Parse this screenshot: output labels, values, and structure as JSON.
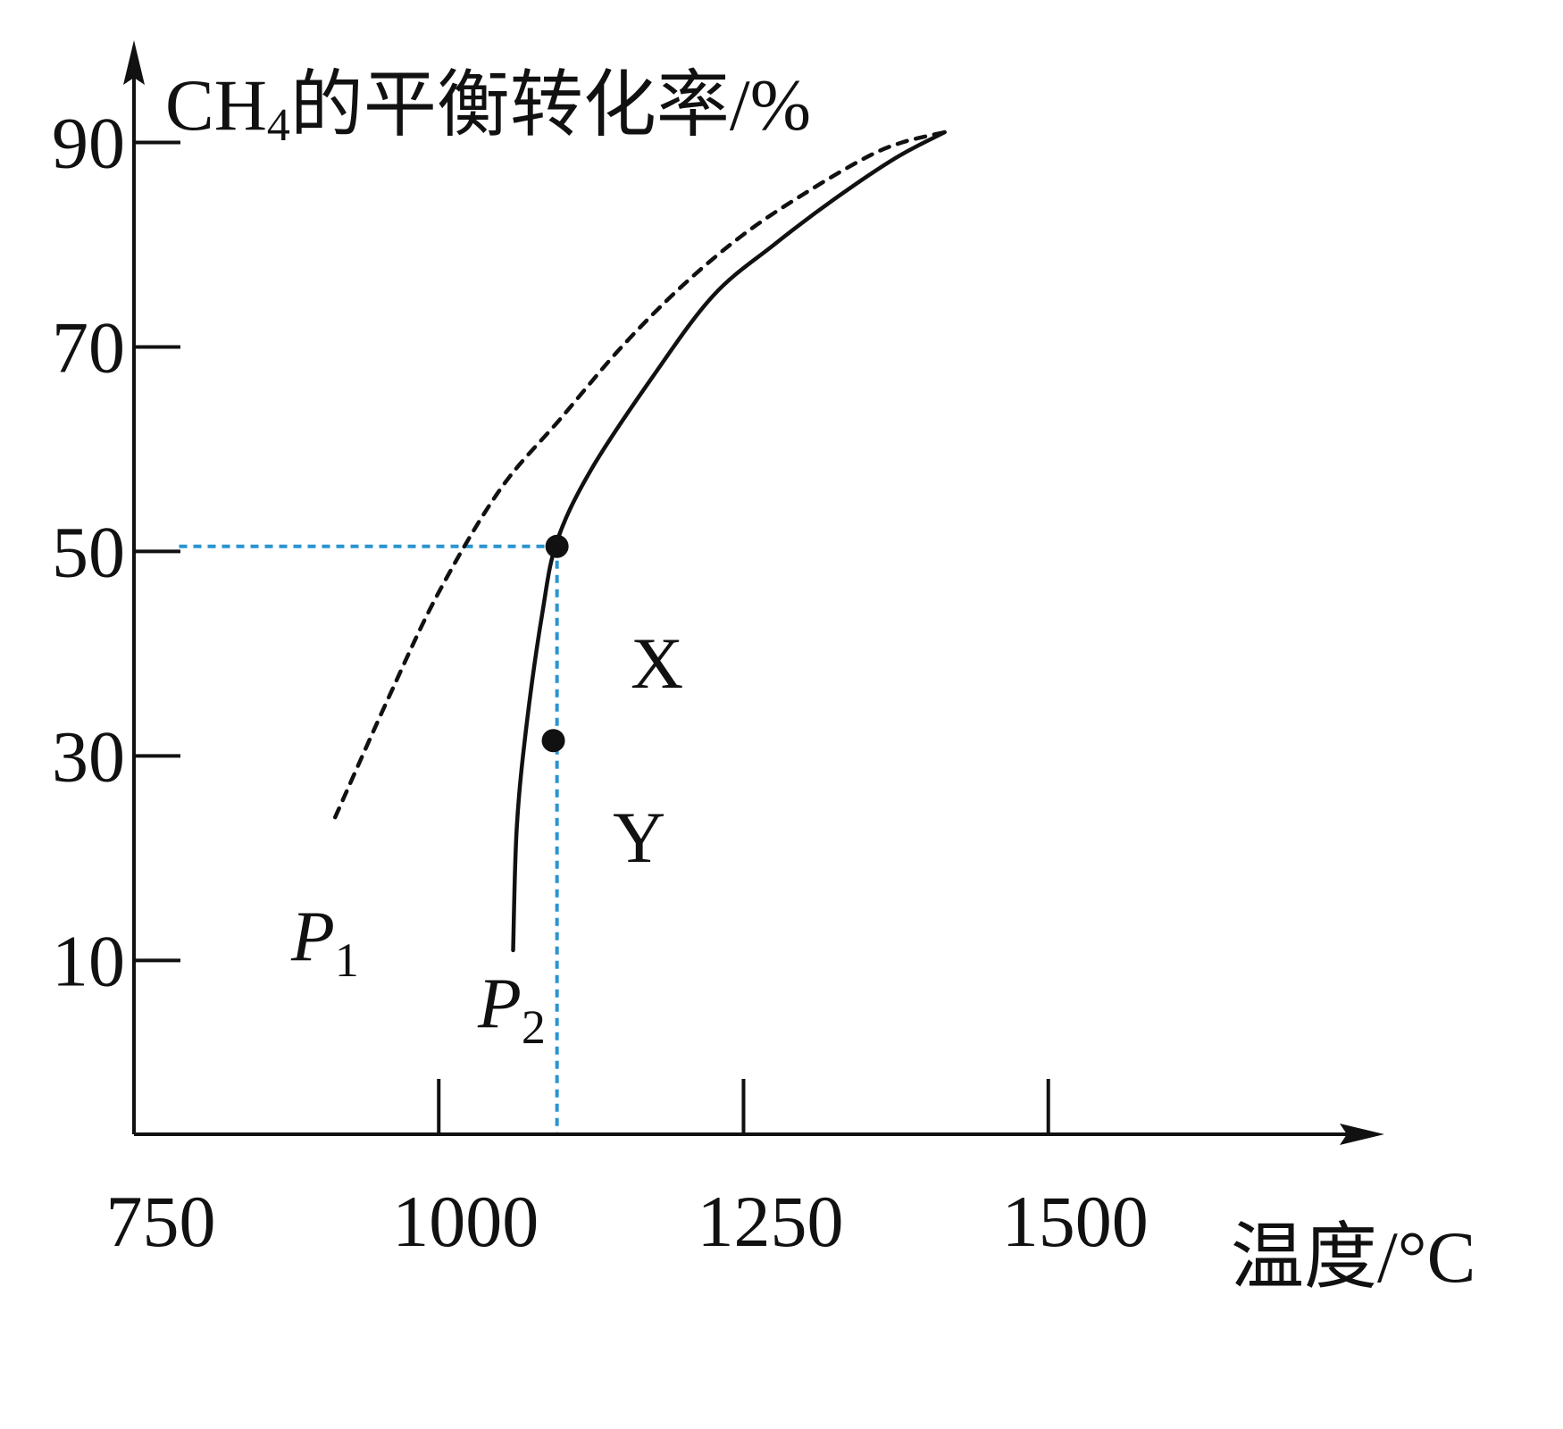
{
  "chart_data": {
    "type": "line",
    "ylabel": {
      "main": "CH",
      "sub": "4",
      "rest": "的平衡转化率/%"
    },
    "xlabel": "温度/°C",
    "xticks": [
      {
        "value": 750,
        "label": "750"
      },
      {
        "value": 1000,
        "label": "1000"
      },
      {
        "value": 1250,
        "label": "1250"
      },
      {
        "value": 1500,
        "label": "1500"
      }
    ],
    "yticks": [
      {
        "value": 10,
        "label": "10"
      },
      {
        "value": 30,
        "label": "30"
      },
      {
        "value": 50,
        "label": "50"
      },
      {
        "value": 70,
        "label": "70"
      },
      {
        "value": 90,
        "label": "90"
      }
    ],
    "xlim": [
      750,
      1772
    ],
    "ylim": [
      -7,
      100
    ],
    "series": [
      {
        "name": "P",
        "sub": "1",
        "style": "dashed",
        "color": "#111111",
        "points": [
          [
            915,
            24
          ],
          [
            960,
            36
          ],
          [
            1000,
            46
          ],
          [
            1050,
            56
          ],
          [
            1100,
            63
          ],
          [
            1150,
            70
          ],
          [
            1200,
            76
          ],
          [
            1250,
            81
          ],
          [
            1300,
            85
          ],
          [
            1350,
            88.5
          ],
          [
            1380,
            90
          ],
          [
            1415,
            91
          ]
        ]
      },
      {
        "name": "P",
        "sub": "2",
        "style": "solid",
        "color": "#111111",
        "points": [
          [
            1061,
            11
          ],
          [
            1064,
            23
          ],
          [
            1072,
            33
          ],
          [
            1085,
            44
          ],
          [
            1097,
            51
          ],
          [
            1125,
            58
          ],
          [
            1175,
            67
          ],
          [
            1225,
            75
          ],
          [
            1275,
            80
          ],
          [
            1325,
            84.5
          ],
          [
            1375,
            88.5
          ],
          [
            1415,
            91
          ]
        ]
      }
    ],
    "points": [
      {
        "label": "X",
        "x": 1097,
        "y": 50.5
      },
      {
        "label": "Y",
        "x": 1094,
        "y": 31.5
      }
    ],
    "guides": {
      "color": "#2a94d0",
      "y_at": 50.5,
      "x_from": 787,
      "x_at": 1097
    }
  }
}
